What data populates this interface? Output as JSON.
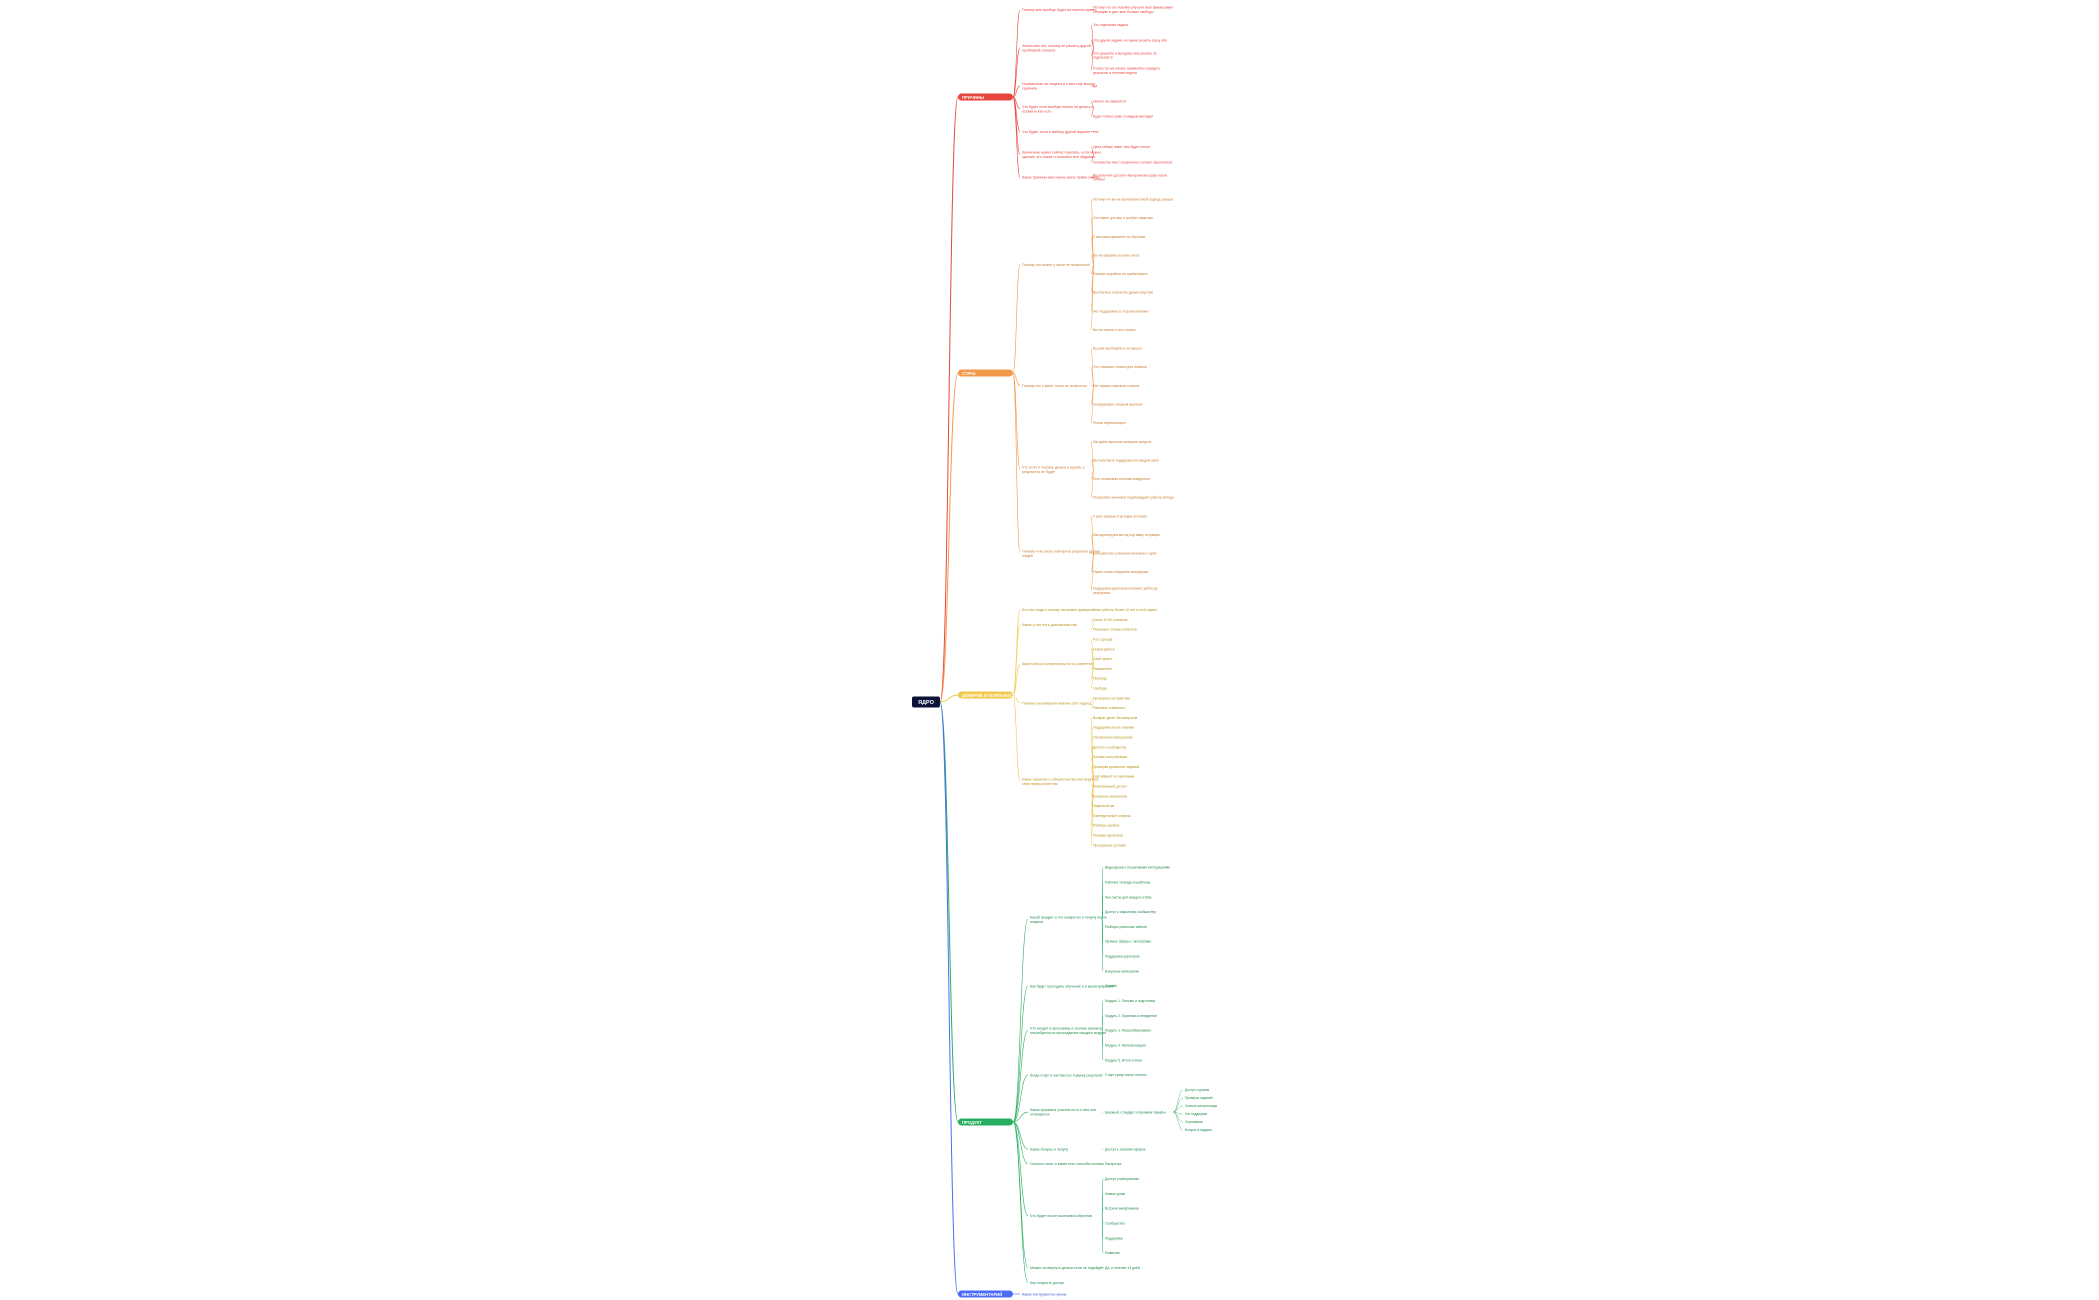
{
  "root": {
    "label": "ЯДРО",
    "color": "#0b1336",
    "text_color": "#ffffff"
  },
  "branches": [
    {
      "id": "pricing",
      "label": "ПРИЧИНЫ",
      "color": "#e8453c",
      "text_color": "#e8453c",
      "questions": [
        {
          "text": "Почему мне вообще будет интересно купить",
          "answers": [
            "Потому что это покупка улучшит мою финансовую ситуацию и даст мне больше свободы"
          ]
        },
        {
          "text": "Зачем мне это, почему не решить другой проблемой сначала",
          "answers": [
            "Это отдельная задача",
            "Это другая задача, но нужно решить сразу обе",
            "Это дешевле и выгоднее чем решать по отдельности",
            "Я могу тут же начать применять и увидеть результат в течение недели"
          ]
        },
        {
          "text": "Нормальная ли покупка и с кем еще можно сравнить",
          "answers": [
            "Да"
          ]
        },
        {
          "text": "Что будет если вообще ничего не делать и оставить как есть",
          "answers": [
            "Ничего не изменится",
            "Будет только хуже с каждым месяцем"
          ]
        },
        {
          "text": "Что будет, если я выберу другой вариант",
          "answers": [
            "Нет"
          ]
        },
        {
          "text": "Зачем мне нужно сейчас покупать, если можно сделать это позже и спокойно всё обдумать",
          "answers": [
            "Цена сейчас ниже, чем будет потом",
            "Количество мест ограничено и может закончиться"
          ]
        },
        {
          "text": "Какие причины мне нужно знать прямо сейчас",
          "answers": [
            "Вы получите доступ к материалам сразу после оплаты"
          ]
        }
      ]
    },
    {
      "id": "fears",
      "label": "СТРАХ",
      "color": "#f2994a",
      "text_color": "#c97a2c",
      "questions": [
        {
          "text": "Почему это может у меня не получиться",
          "answers": [
            "Потому что вы не пробовали такой подход раньше",
            "Это новое для вас и требует практики",
            "У вас мало времени на обучение",
            "Вы не уверены в своих силах",
            "Раньше подобное не срабатывало",
            "Вы боитесь потратить деньги впустую",
            "Нет поддержки со стороны близких",
            "Вы не знаете с чего начать"
          ]
        },
        {
          "text": "Почему это у меня точно не получится",
          "answers": [
            "Вы уже пробовали и не вышло",
            "Это слишком сложно для новичка",
            "Нет нужных навыков и опыта",
            "Конкуренция слишком высокая",
            "Рынок перенасыщен"
          ]
        },
        {
          "text": "Что если я потрачу деньги и время, а результата не будет",
          "answers": [
            "Мы даём гарантию возврата средств",
            "Вы получаете поддержку на каждом шаге",
            "Есть пошаговая система внедрения",
            "Результаты учеников подтверждают работу метода"
          ]
        },
        {
          "text": "Почему я не смогу повторить результат других людей",
          "answers": [
            "У всех разные стартовые условия",
            "Мы адаптируем метод под вашу ситуацию",
            "Большинство учеников начинали с нуля",
            "Нужно лишь следовать инструкции",
            "Поддержка кураторов помогает дойти до результата"
          ]
        }
      ]
    },
    {
      "id": "trust",
      "label": "ДОВЕРИЕ И ЛОЯЛЬНОСТЬ",
      "color": "#f2c94c",
      "text_color": "#b8901a",
      "questions": [
        {
          "text": "Кто эти люди и почему им можно доверять",
          "answers": [
            "Опыт работы более 10 лет в этой сфере"
          ]
        },
        {
          "text": "Какие у них есть доказательства",
          "answers": [
            "Более 5 000 учеников",
            "Реальные отзывы клиентов"
          ]
        },
        {
          "text": "Какие кейсы и результаты есть у клиентов",
          "answers": [
            "Рост дохода",
            "Новая работа",
            "Свой проект",
            "Повышение",
            "Переезд",
            "Свобода"
          ]
        },
        {
          "text": "Почему они выбрали именно этот подход",
          "answers": [
            "Проверено на практике",
            "Работает стабильно"
          ]
        },
        {
          "text": "Какие гарантии и обязательства они берут на себя перед клиентом",
          "answers": [
            "Возврат денег без вопросов",
            "Поддержка после покупки",
            "Обновления материалов",
            "Доступ к сообществу",
            "Личные консультации",
            "Проверка домашних заданий",
            "Сертификат по окончании",
            "Пожизненный доступ",
            "Бонусные материалы",
            "Закрытый чат",
            "Еженедельные созвоны",
            "Разборы ошибок",
            "Помощь кураторов",
            "Прозрачные условия"
          ]
        }
      ]
    },
    {
      "id": "product",
      "label": "ПРОДУКТ",
      "color": "#27ae60",
      "text_color": "#1e8a4c",
      "questions": [
        {
          "text": "Какой продукт и что конкретно я получу после покупки",
          "answers": [
            "Видеоуроки с пошаговыми инструкциями",
            "Рабочие тетради и шаблоны",
            "Чек-листы для каждого этапа",
            "Доступ к закрытому сообществу",
            "Разборы реальных кейсов",
            "Прямые эфиры с экспертами",
            "Поддержка кураторов",
            "Бонусные материалы"
          ]
        },
        {
          "text": "Как будет проходить обучение и в каком формате",
          "answers": [
            "Онлайн"
          ]
        },
        {
          "text": "Что входит в программу и сколько времени потребуется на прохождение каждого модуля",
          "answers": [
            "Модуль 1. Основы и подготовка",
            "Модуль 2. Практика и внедрение",
            "Модуль 3. Масштабирование",
            "Модуль 4. Автоматизация",
            "Модуль 5. Итоги и план"
          ]
        },
        {
          "text": "Когда старт и как быстро я увижу результат",
          "answers": [
            "Старт сразу после оплаты"
          ]
        },
        {
          "text": "Какие форматы участия есть и чем они отличаются",
          "answers": [
            "Базовый, стандарт и премиум тарифы"
          ],
          "sub": [
            "Доступ к урокам",
            "Проверка заданий",
            "Личные консультации",
            "Чат поддержки",
            "Сертификат",
            "Бонусы и подарки"
          ]
        },
        {
          "text": "Какие бонусы я получу",
          "answers": [
            "Доступ к записям эфиров"
          ]
        },
        {
          "text": "Сколько стоит и какие есть способы оплаты",
          "answers": [
            "Рассрочка"
          ]
        },
        {
          "text": "Что будет после окончания обучения",
          "answers": [
            "Доступ к материалам",
            "Новые уроки",
            "Встречи выпускников",
            "Сообщество",
            "Поддержка",
            "Развитие"
          ]
        },
        {
          "text": "Можно ли вернуть деньги если не подойдёт",
          "answers": [
            "Да, в течение 14 дней"
          ]
        },
        {
          "text": "Как получить доступ",
          "answers": []
        }
      ]
    },
    {
      "id": "tools",
      "label": "ИНСТРУМЕНТАРИЙ",
      "color": "#4a6cf7",
      "text_color": "#3b56c9",
      "questions": [
        {
          "text": "Какие инструменты нужны",
          "answers": []
        }
      ]
    }
  ]
}
